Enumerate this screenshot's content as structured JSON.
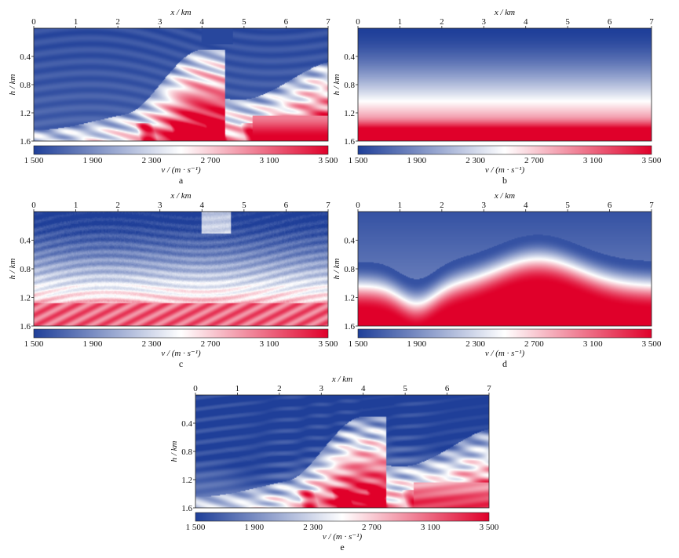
{
  "chart_data": [
    {
      "panel": "a",
      "type": "heatmap",
      "xlabel": "x / km",
      "ylabel": "h / km",
      "xticks": [
        0,
        1,
        2,
        3,
        4,
        5,
        6,
        7
      ],
      "yticks": [
        0.4,
        0.8,
        1.2,
        1.6
      ],
      "xlim": [
        0,
        7
      ],
      "ylim": [
        0,
        1.6
      ],
      "y_inverted": true,
      "field": "marmousi",
      "colorbar": {
        "label": "v / (m · s⁻¹)",
        "ticks": [
          1500,
          1900,
          2300,
          2700,
          3100,
          3500
        ],
        "tick_labels": [
          "1 500",
          "1 900",
          "2 300",
          "2 700",
          "3 100",
          "3 500"
        ],
        "range": [
          1500,
          3500
        ]
      }
    },
    {
      "panel": "b",
      "type": "heatmap",
      "xlabel": "x / km",
      "ylabel": "h / km",
      "xticks": [
        0,
        1,
        2,
        3,
        4,
        5,
        6,
        7
      ],
      "yticks": [
        0.4,
        0.8,
        1.2,
        1.6
      ],
      "xlim": [
        0,
        7
      ],
      "ylim": [
        0,
        1.6
      ],
      "y_inverted": true,
      "field": "linear",
      "colorbar": {
        "label": "v / (m · s⁻¹)",
        "ticks": [
          1500,
          1900,
          2300,
          2700,
          3100,
          3500
        ],
        "tick_labels": [
          "1 500",
          "1 900",
          "2 300",
          "2 700",
          "3 100",
          "3 500"
        ],
        "range": [
          1500,
          3500
        ]
      }
    },
    {
      "panel": "c",
      "type": "heatmap",
      "xlabel": "x / km",
      "ylabel": "h / km",
      "xticks": [
        0,
        1,
        2,
        3,
        4,
        5,
        6,
        7
      ],
      "yticks": [
        0.4,
        0.8,
        1.2,
        1.6
      ],
      "xlim": [
        0,
        7
      ],
      "ylim": [
        0,
        1.6
      ],
      "y_inverted": true,
      "field": "inverted_from_linear",
      "colorbar": {
        "label": "v / (m · s⁻¹)",
        "ticks": [
          1500,
          1900,
          2300,
          2700,
          3100,
          3500
        ],
        "tick_labels": [
          "1 500",
          "1 900",
          "2 300",
          "2 700",
          "3 100",
          "3 500"
        ],
        "range": [
          1500,
          3500
        ]
      }
    },
    {
      "panel": "d",
      "type": "heatmap",
      "xlabel": "x / km",
      "ylabel": "h / km",
      "xticks": [
        0,
        1,
        2,
        3,
        4,
        5,
        6,
        7
      ],
      "yticks": [
        0.4,
        0.8,
        1.2,
        1.6
      ],
      "xlim": [
        0,
        7
      ],
      "ylim": [
        0,
        1.6
      ],
      "y_inverted": true,
      "field": "smooth",
      "colorbar": {
        "label": "v / (m · s⁻¹)",
        "ticks": [
          1500,
          1900,
          2300,
          2700,
          3100,
          3500
        ],
        "tick_labels": [
          "1 500",
          "1 900",
          "2 300",
          "2 700",
          "3 100",
          "3 500"
        ],
        "range": [
          1500,
          3500
        ]
      }
    },
    {
      "panel": "e",
      "type": "heatmap",
      "xlabel": "x / km",
      "ylabel": "h / km",
      "xticks": [
        0,
        1,
        2,
        3,
        4,
        5,
        6,
        7
      ],
      "yticks": [
        0.4,
        0.8,
        1.2,
        1.6
      ],
      "xlim": [
        0,
        7
      ],
      "ylim": [
        0,
        1.6
      ],
      "y_inverted": true,
      "field": "inverted_from_smooth",
      "colorbar": {
        "label": "v / (m · s⁻¹)",
        "ticks": [
          1500,
          1900,
          2300,
          2700,
          3100,
          3500
        ],
        "tick_labels": [
          "1 500",
          "1 900",
          "2 300",
          "2 700",
          "3 100",
          "3 500"
        ],
        "range": [
          1500,
          3500
        ]
      }
    }
  ],
  "colors": {
    "low": "#1f3f99",
    "mid": "#ffffff",
    "high": "#e0002a"
  }
}
